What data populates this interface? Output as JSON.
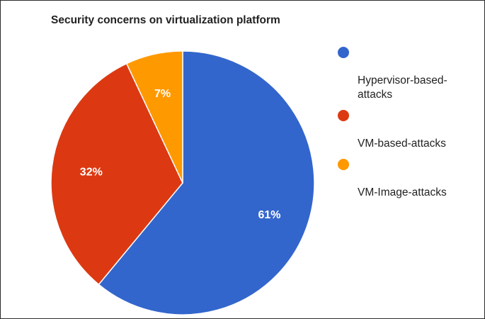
{
  "chart_data": {
    "type": "pie",
    "title": "Security concerns on virtualization platform",
    "slices": [
      {
        "label": "Hypervisor-based-attacks",
        "legend_text": "Hypervisor-based-\nattacks",
        "value": 61,
        "display": "61%",
        "color": "#3366cc"
      },
      {
        "label": "VM-based-attacks",
        "legend_text": "VM-based-attacks",
        "value": 32,
        "display": "32%",
        "color": "#dc3912"
      },
      {
        "label": "VM-Image-attacks",
        "legend_text": "VM-Image-attacks",
        "value": 7,
        "display": "7%",
        "color": "#ff9900"
      }
    ],
    "legend_position": "right",
    "start_angle": "top",
    "direction": "clockwise"
  }
}
